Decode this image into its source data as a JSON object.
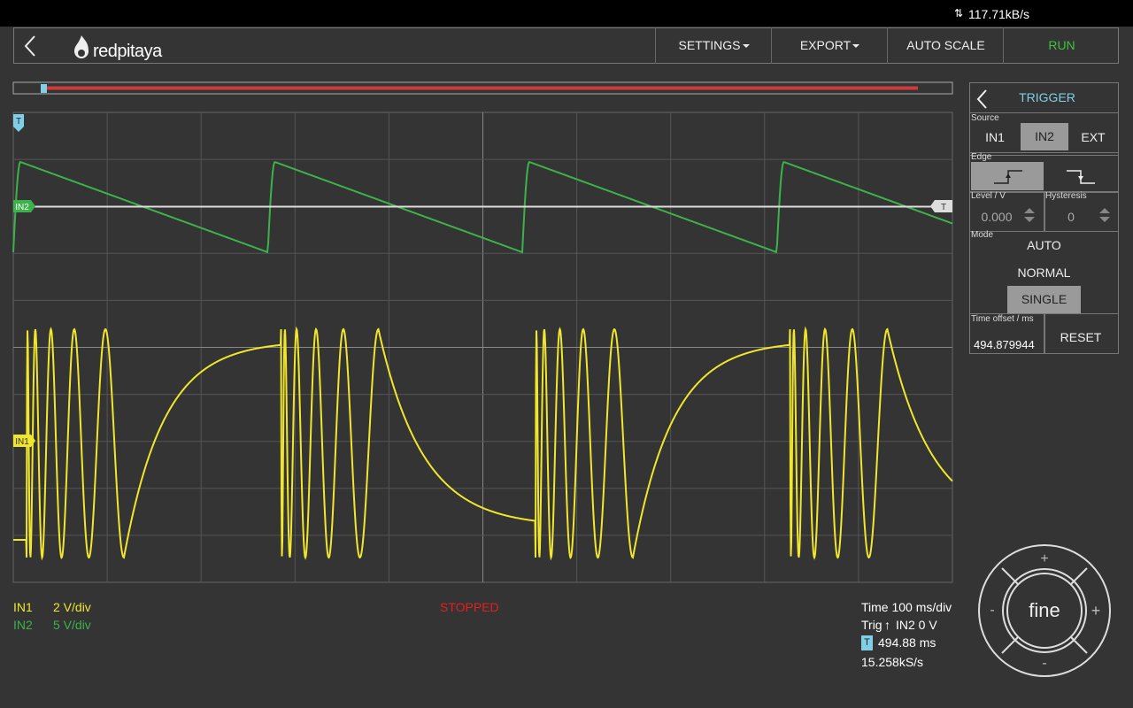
{
  "status_bar": {
    "rate": "117.71kB/s"
  },
  "toolbar": {
    "logo": "redpitaya",
    "buttons": [
      "SETTINGS",
      "EXPORT",
      "AUTO SCALE",
      "RUN"
    ]
  },
  "plot": {
    "trigger_marker": "T",
    "in2_marker": "IN2",
    "in1_marker": "IN1",
    "level_marker": "T"
  },
  "trigger_panel": {
    "title": "TRIGGER",
    "source_label": "Source",
    "sources": [
      "IN1",
      "IN2",
      "EXT"
    ],
    "edge_label": "Edge",
    "level_label": "Level / V",
    "level_value": "0.000",
    "hysteresis_label": "Hysteresis",
    "hysteresis_value": "0",
    "mode_label": "Mode",
    "modes": [
      "AUTO",
      "NORMAL",
      "SINGLE"
    ],
    "offset_label": "Time offset / ms",
    "offset_value": "494.879944",
    "reset": "RESET"
  },
  "footer": {
    "channels": [
      {
        "name": "IN1",
        "scale": "2 V/div"
      },
      {
        "name": "IN2",
        "scale": "5 V/div"
      }
    ],
    "status": "STOPPED",
    "time": "Time 100 ms/div",
    "trig_prefix": "Trig",
    "trig_rest": "IN2 0 V",
    "marker": "T",
    "offset": "494.88 ms",
    "sample_rate": "15.258kS/s"
  },
  "fine_control": {
    "center": "fine",
    "plus_top": "+",
    "minus_bottom": "-",
    "minus_left": "-",
    "plus_right": "+"
  }
}
